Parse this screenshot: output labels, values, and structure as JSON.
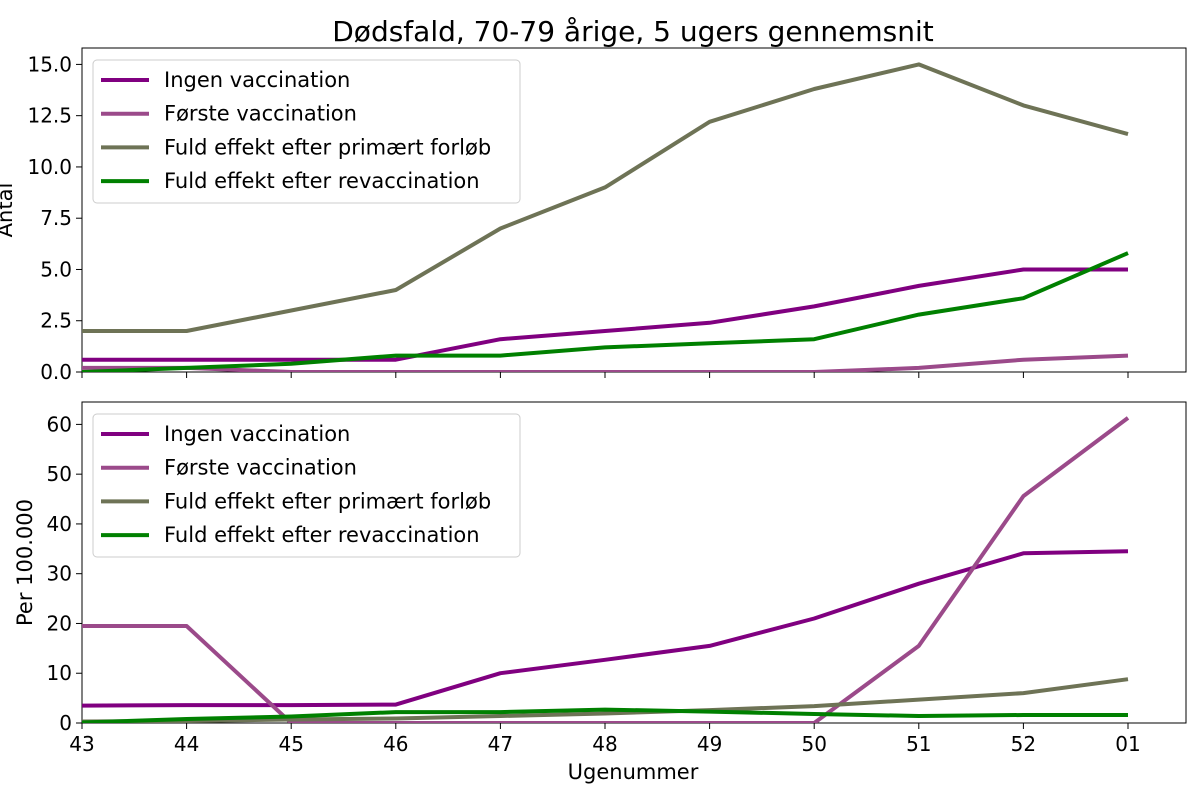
{
  "chart_data": {
    "title": "Dødsfald, 70-79 årige, 5 ugers gennemsnit",
    "xlabel": "Ugenummer",
    "categories": [
      "43",
      "44",
      "45",
      "46",
      "47",
      "48",
      "49",
      "50",
      "51",
      "52",
      "01"
    ],
    "colors": {
      "Ingen vaccination": "#800080",
      "Første vaccination": "#9b4a8a",
      "Fuld effekt efter primært forløb": "#6e7356",
      "Fuld effekt efter revaccination": "#008000"
    },
    "charts": [
      {
        "type": "line",
        "ylabel": "Antal",
        "ylim": [
          0,
          15.8
        ],
        "yticks": [
          0.0,
          2.5,
          5.0,
          7.5,
          10.0,
          12.5,
          15.0
        ],
        "ytick_labels": [
          "0.0",
          "2.5",
          "5.0",
          "7.5",
          "10.0",
          "12.5",
          "15.0"
        ],
        "legend": "top-left",
        "series": [
          {
            "name": "Ingen vaccination",
            "values": [
              0.6,
              0.6,
              0.6,
              0.6,
              1.6,
              2.0,
              2.4,
              3.2,
              4.2,
              5.0,
              5.0
            ]
          },
          {
            "name": "Første vaccination",
            "values": [
              0.2,
              0.2,
              0.0,
              0.0,
              0.0,
              0.0,
              0.0,
              0.0,
              0.2,
              0.6,
              0.8
            ]
          },
          {
            "name": "Fuld effekt efter primært forløb",
            "values": [
              2.0,
              2.0,
              3.0,
              4.0,
              7.0,
              9.0,
              12.2,
              13.8,
              15.0,
              13.0,
              11.6
            ]
          },
          {
            "name": "Fuld effekt efter revaccination",
            "values": [
              0.0,
              0.2,
              0.4,
              0.8,
              0.8,
              1.2,
              1.4,
              1.6,
              2.8,
              3.6,
              5.8
            ]
          }
        ]
      },
      {
        "type": "line",
        "ylabel": "Per 100.000",
        "ylim": [
          0,
          64.5
        ],
        "yticks": [
          0,
          10,
          20,
          30,
          40,
          50,
          60
        ],
        "ytick_labels": [
          "0",
          "10",
          "20",
          "30",
          "40",
          "50",
          "60"
        ],
        "legend": "top-left",
        "series": [
          {
            "name": "Ingen vaccination",
            "values": [
              3.5,
              3.6,
              3.6,
              3.7,
              10.0,
              12.7,
              15.5,
              21.0,
              28.0,
              34.1,
              34.5
            ]
          },
          {
            "name": "Første vaccination",
            "values": [
              19.5,
              19.5,
              0.0,
              0.0,
              0.0,
              0.0,
              0.0,
              0.0,
              15.5,
              45.6,
              61.3
            ]
          },
          {
            "name": "Fuld effekt efter primært forløb",
            "values": [
              0.3,
              0.4,
              0.7,
              0.9,
              1.4,
              1.9,
              2.6,
              3.4,
              4.7,
              6.0,
              8.8
            ]
          },
          {
            "name": "Fuld effekt efter revaccination",
            "values": [
              0.1,
              0.8,
              1.3,
              2.2,
              2.2,
              2.7,
              2.3,
              1.8,
              1.4,
              1.6,
              1.6
            ]
          }
        ]
      }
    ]
  }
}
